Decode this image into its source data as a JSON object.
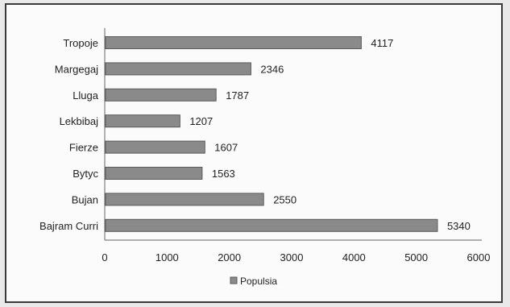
{
  "chart_data": {
    "type": "bar",
    "orientation": "horizontal",
    "title": "",
    "xlabel": "",
    "ylabel": "",
    "categories": [
      "Tropoje",
      "Margegaj",
      "Lluga",
      "Lekbibaj",
      "Fierze",
      "Bytyc",
      "Bujan",
      "Bajram Curri"
    ],
    "series": [
      {
        "name": "Populsia",
        "values": [
          4117,
          2346,
          1787,
          1207,
          1607,
          1563,
          2550,
          5340
        ]
      }
    ],
    "xlim": [
      0,
      6000
    ],
    "xticks": [
      "0",
      "1000",
      "2000",
      "3000",
      "4000",
      "5000",
      "6000"
    ],
    "data_labels": [
      "4117",
      "2346",
      "1787",
      "1207",
      "1607",
      "1563",
      "2550",
      "5340"
    ],
    "grid": false,
    "legend": "bottom",
    "bar_color": "#8a8a8a",
    "bar_edge_color": "#5a5a5a"
  }
}
